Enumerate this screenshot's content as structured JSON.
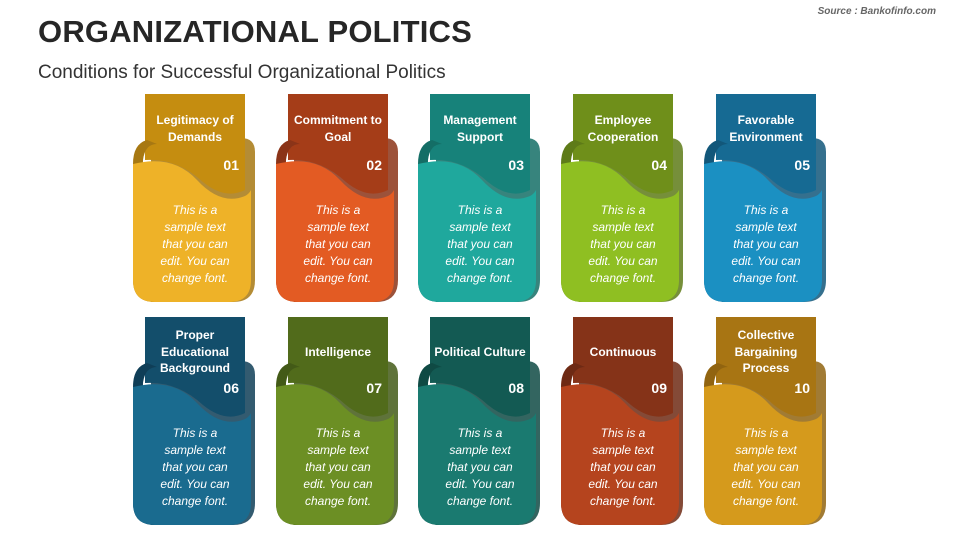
{
  "header": {
    "title": "ORGANIZATIONAL POLITICS",
    "subtitle": "Conditions for Successful Organizational Politics",
    "source": "Source : Bankofinfo.com"
  },
  "cards": [
    {
      "title": "Legitimacy of Demands",
      "number": "01",
      "body": "This is a sample text that you can edit. You can change font.",
      "color_dark": "#a77812",
      "color_mid": "#c58d10",
      "color_light": "#eeb228"
    },
    {
      "title": "Commitment to Goal",
      "number": "02",
      "body": "This is a sample text that you can edit. You can change font.",
      "color_dark": "#8b3418",
      "color_mid": "#a53d18",
      "color_light": "#e35b23"
    },
    {
      "title": "Management Support",
      "number": "03",
      "body": "This is a sample text that you can edit. You can change font.",
      "color_dark": "#146e66",
      "color_mid": "#17827a",
      "color_light": "#1fa89d"
    },
    {
      "title": "Employee Cooperation",
      "number": "04",
      "body": "This is a sample text that you can edit. You can change font.",
      "color_dark": "#5e7b18",
      "color_mid": "#6f8f1a",
      "color_light": "#8fbf22"
    },
    {
      "title": "Favorable Environment",
      "number": "05",
      "body": "This is a sample text that you can edit. You can change font.",
      "color_dark": "#12577a",
      "color_mid": "#166a93",
      "color_light": "#1b90c2"
    },
    {
      "title": "Proper Educational Background",
      "number": "06",
      "body": "This is a sample text that you can edit. You can change font.",
      "color_dark": "#0f3e57",
      "color_mid": "#134e6b",
      "color_light": "#1a6b8f"
    },
    {
      "title": "Intelligence",
      "number": "07",
      "body": "This is a sample text that you can edit. You can change font.",
      "color_dark": "#435a17",
      "color_mid": "#516b1b",
      "color_light": "#6c8f24"
    },
    {
      "title": "Political Culture",
      "number": "08",
      "body": "This is a sample text that you can edit. You can change font.",
      "color_dark": "#0f4a44",
      "color_mid": "#135a53",
      "color_light": "#1a7a70"
    },
    {
      "title": "Continuous",
      "number": "09",
      "body": "This is a sample text that you can edit. You can change font.",
      "color_dark": "#6e2a14",
      "color_mid": "#853318",
      "color_light": "#b5441e"
    },
    {
      "title": "Collective Bargaining Process",
      "number": "10",
      "body": "This is a sample text that you can edit. You can change font.",
      "color_dark": "#916410",
      "color_mid": "#a87513",
      "color_light": "#d59a1c"
    }
  ]
}
